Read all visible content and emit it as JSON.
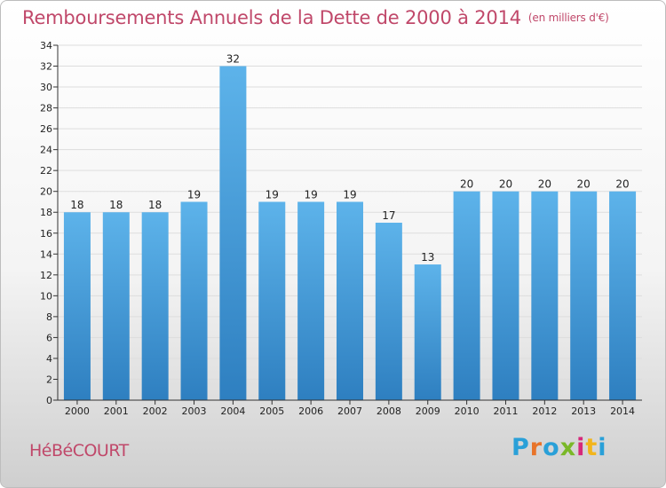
{
  "header": {
    "title": "Remboursements Annuels de la Dette de 2000 à 2014",
    "unit": "(en milliers d'€)"
  },
  "footer": {
    "commune": "HéBéCOURT",
    "logo_text": "Proxiti",
    "logo_colors": [
      "#2aa0d8",
      "#e8742a",
      "#2aa0d8",
      "#7ab828",
      "#d6287a",
      "#f2b51c",
      "#2aa0d8"
    ]
  },
  "colors": {
    "bar_light": "#5db3ea",
    "bar_dark": "#2e7fc0",
    "title": "#c0486a",
    "grid": "#dddddd"
  },
  "chart_data": {
    "type": "bar",
    "title": "Remboursements Annuels de la Dette de 2000 à 2014",
    "subtitle": "(en milliers d'€)",
    "categories": [
      "2000",
      "2001",
      "2002",
      "2003",
      "2004",
      "2005",
      "2006",
      "2007",
      "2008",
      "2009",
      "2010",
      "2011",
      "2012",
      "2013",
      "2014"
    ],
    "values": [
      18,
      18,
      18,
      19,
      32,
      19,
      19,
      19,
      17,
      13,
      20,
      20,
      20,
      20,
      20
    ],
    "xlabel": "",
    "ylabel": "",
    "ylim": [
      0,
      34
    ],
    "ytick_step": 2,
    "grid": true,
    "data_labels": true
  }
}
